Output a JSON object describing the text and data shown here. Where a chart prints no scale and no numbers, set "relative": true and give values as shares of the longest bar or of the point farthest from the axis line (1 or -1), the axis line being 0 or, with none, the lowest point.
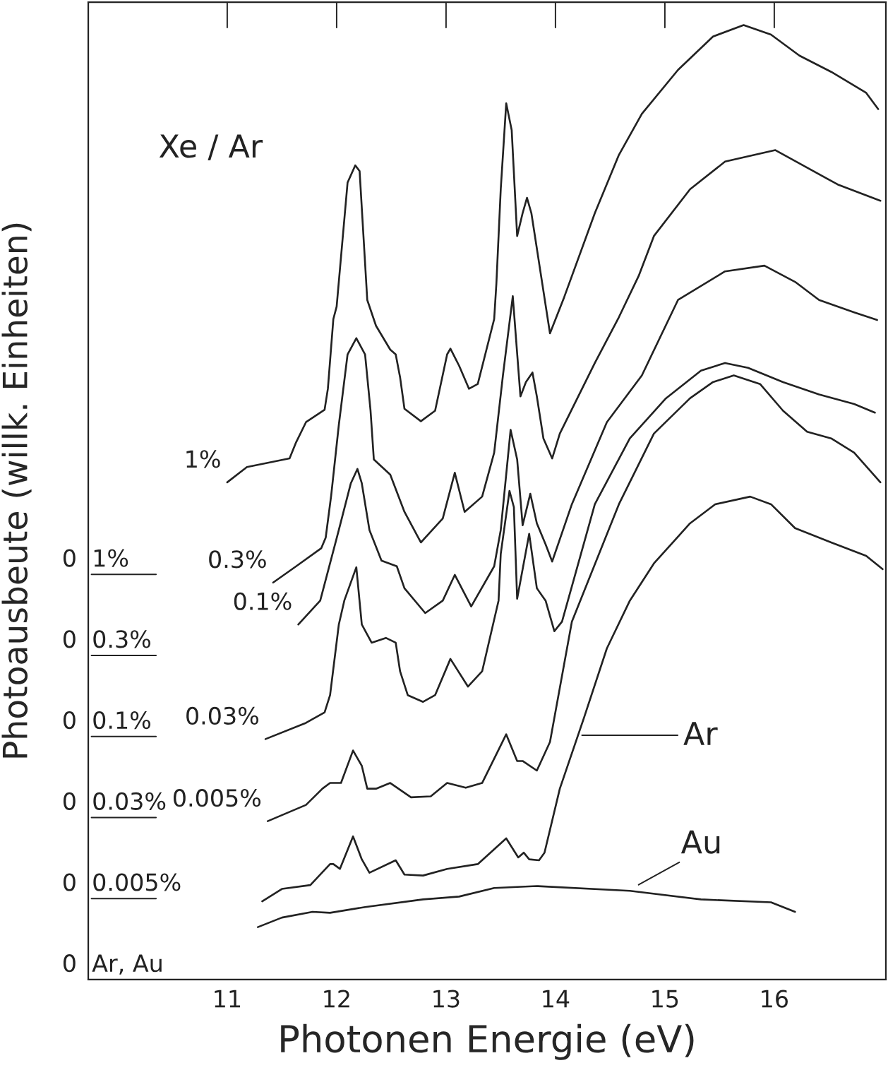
{
  "chart_data": {
    "type": "line",
    "relative": true,
    "xlabel": "Photonen Energie (eV)",
    "ylabel": "Photoausbeute (willk. Einheiten)",
    "annotations": [
      "Xe / Ar",
      "0  1%",
      "0  0.3%",
      "0  0.1%",
      "0  0.03%",
      "0  0.005%",
      "0  Ar, Au",
      "Ar",
      "Au"
    ],
    "xlim": [
      9.73,
      17.02
    ],
    "xticks": [
      11,
      12,
      13,
      14,
      15,
      16
    ],
    "line_style": "solid",
    "series": [
      {
        "name": "1%",
        "color": "#222222",
        "x": [
          11.0,
          11.18,
          11.57,
          11.63,
          11.72,
          11.89,
          11.92,
          11.97,
          12.0,
          12.1,
          12.17,
          12.21,
          12.28,
          12.36,
          12.49,
          12.54,
          12.58,
          12.62,
          12.77,
          12.9,
          13.01,
          13.04,
          13.12,
          13.21,
          13.29,
          13.44,
          13.46,
          13.5,
          13.55,
          13.6,
          13.65,
          13.7,
          13.74,
          13.78,
          13.95,
          14.08,
          14.36,
          14.58,
          14.79,
          15.12,
          15.44,
          15.72,
          15.97,
          16.23,
          16.52,
          16.84,
          16.95
        ],
        "values": [
          0.521,
          0.537,
          0.546,
          0.563,
          0.584,
          0.597,
          0.619,
          0.692,
          0.705,
          0.835,
          0.853,
          0.847,
          0.712,
          0.685,
          0.66,
          0.655,
          0.631,
          0.598,
          0.585,
          0.596,
          0.655,
          0.661,
          0.643,
          0.619,
          0.624,
          0.692,
          0.729,
          0.828,
          0.918,
          0.89,
          0.779,
          0.803,
          0.819,
          0.803,
          0.677,
          0.715,
          0.803,
          0.864,
          0.907,
          0.953,
          0.988,
          1.0,
          0.99,
          0.968,
          0.951,
          0.929,
          0.912
        ]
      },
      {
        "name": "0.3%",
        "color": "#222222",
        "x": [
          11.42,
          11.63,
          11.86,
          11.9,
          11.95,
          12.02,
          12.1,
          12.18,
          12.26,
          12.31,
          12.34,
          12.49,
          12.62,
          12.77,
          12.97,
          13.08,
          13.17,
          13.33,
          13.44,
          13.52,
          13.61,
          13.68,
          13.73,
          13.79,
          13.83,
          13.89,
          13.97,
          14.04,
          14.36,
          14.58,
          14.76,
          14.9,
          15.23,
          15.55,
          16.01,
          16.23,
          16.58,
          16.97
        ],
        "values": [
          0.416,
          0.433,
          0.452,
          0.463,
          0.507,
          0.581,
          0.655,
          0.672,
          0.655,
          0.596,
          0.545,
          0.529,
          0.49,
          0.458,
          0.483,
          0.531,
          0.49,
          0.506,
          0.552,
          0.633,
          0.716,
          0.611,
          0.626,
          0.636,
          0.611,
          0.567,
          0.546,
          0.572,
          0.646,
          0.694,
          0.737,
          0.779,
          0.828,
          0.857,
          0.869,
          0.855,
          0.833,
          0.816
        ]
      },
      {
        "name": "0.1%",
        "color": "#222222",
        "x": [
          11.65,
          11.85,
          12.02,
          12.13,
          12.19,
          12.23,
          12.3,
          12.41,
          12.55,
          12.62,
          12.81,
          12.97,
          13.08,
          13.23,
          13.44,
          13.5,
          13.59,
          13.65,
          13.7,
          13.77,
          13.83,
          13.91,
          13.97,
          14.15,
          14.47,
          14.79,
          15.12,
          15.55,
          15.91,
          16.19,
          16.41,
          16.73,
          16.94
        ],
        "values": [
          0.372,
          0.397,
          0.471,
          0.52,
          0.535,
          0.52,
          0.471,
          0.439,
          0.433,
          0.41,
          0.384,
          0.397,
          0.424,
          0.391,
          0.433,
          0.471,
          0.576,
          0.545,
          0.476,
          0.509,
          0.478,
          0.456,
          0.438,
          0.498,
          0.584,
          0.633,
          0.712,
          0.742,
          0.748,
          0.731,
          0.712,
          0.699,
          0.691
        ]
      },
      {
        "name": "0.03%",
        "color": "#222222",
        "x": [
          11.35,
          11.72,
          11.89,
          11.94,
          12.02,
          12.07,
          12.18,
          12.23,
          12.32,
          12.45,
          12.54,
          12.58,
          12.65,
          12.79,
          12.9,
          13.04,
          13.2,
          13.33,
          13.48,
          13.5,
          13.58,
          13.62,
          13.65,
          13.76,
          13.83,
          13.91,
          13.99,
          14.06,
          14.36,
          14.68,
          15.01,
          15.33,
          15.55,
          15.76,
          16.08,
          16.41,
          16.73,
          16.92
        ],
        "values": [
          0.252,
          0.269,
          0.28,
          0.298,
          0.372,
          0.397,
          0.432,
          0.372,
          0.353,
          0.358,
          0.353,
          0.323,
          0.298,
          0.291,
          0.298,
          0.336,
          0.307,
          0.323,
          0.397,
          0.446,
          0.512,
          0.495,
          0.399,
          0.467,
          0.41,
          0.397,
          0.365,
          0.375,
          0.498,
          0.567,
          0.609,
          0.638,
          0.646,
          0.641,
          0.626,
          0.613,
          0.603,
          0.594
        ]
      },
      {
        "name": "0.005%",
        "color": "#222222",
        "x": [
          11.37,
          11.72,
          11.87,
          11.94,
          12.04,
          12.15,
          12.23,
          12.28,
          12.36,
          12.49,
          12.68,
          12.86,
          13.01,
          13.18,
          13.33,
          13.55,
          13.65,
          13.7,
          13.83,
          13.95,
          14.15,
          14.58,
          14.9,
          15.23,
          15.44,
          15.63,
          15.87,
          16.08,
          16.3,
          16.52,
          16.73,
          16.97
        ],
        "values": [
          0.166,
          0.183,
          0.2,
          0.206,
          0.206,
          0.24,
          0.224,
          0.2,
          0.2,
          0.206,
          0.191,
          0.192,
          0.206,
          0.201,
          0.206,
          0.257,
          0.229,
          0.229,
          0.219,
          0.249,
          0.375,
          0.498,
          0.572,
          0.609,
          0.626,
          0.633,
          0.624,
          0.596,
          0.574,
          0.567,
          0.552,
          0.521
        ]
      },
      {
        "color": "#222222",
        "x": [
          11.32,
          11.5,
          11.76,
          11.94,
          11.97,
          12.03,
          12.15,
          12.23,
          12.3,
          12.54,
          12.62,
          12.79,
          13.01,
          13.29,
          13.55,
          13.66,
          13.71,
          13.76,
          13.85,
          13.9,
          14.04,
          14.26,
          14.47,
          14.68,
          14.9,
          15.23,
          15.46,
          15.78,
          15.97,
          16.19,
          16.52,
          16.84,
          16.99
        ],
        "values": [
          0.082,
          0.095,
          0.099,
          0.121,
          0.121,
          0.116,
          0.15,
          0.126,
          0.112,
          0.125,
          0.11,
          0.109,
          0.116,
          0.121,
          0.148,
          0.128,
          0.133,
          0.126,
          0.125,
          0.133,
          0.2,
          0.274,
          0.347,
          0.397,
          0.436,
          0.478,
          0.498,
          0.506,
          0.498,
          0.473,
          0.458,
          0.444,
          0.43
        ]
      },
      {
        "color": "#222222",
        "x": [
          11.28,
          11.5,
          11.78,
          11.94,
          12.26,
          12.79,
          13.12,
          13.44,
          13.83,
          14.68,
          15.33,
          15.97,
          16.19
        ],
        "values": [
          0.055,
          0.065,
          0.071,
          0.07,
          0.076,
          0.084,
          0.087,
          0.096,
          0.098,
          0.093,
          0.084,
          0.081,
          0.071
        ]
      }
    ]
  }
}
